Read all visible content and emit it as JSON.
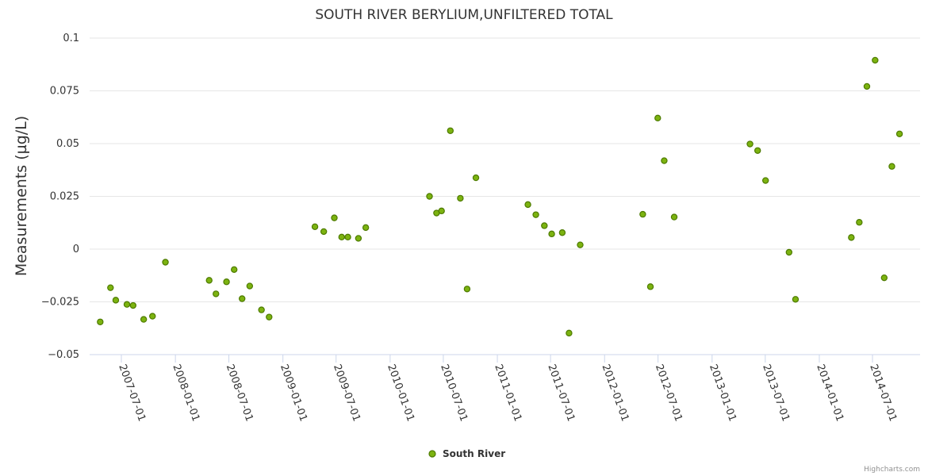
{
  "chart_data": {
    "type": "scatter",
    "title": "SOUTH RIVER BERYLIUM,UNFILTERED TOTAL",
    "xlabel": "",
    "ylabel": "Measurements (µg/L)",
    "ylim": [
      -0.05,
      0.1
    ],
    "yticks": [
      {
        "value": 0.1,
        "label": "0.1"
      },
      {
        "value": 0.075,
        "label": "0.075"
      },
      {
        "value": 0.05,
        "label": "0.05"
      },
      {
        "value": 0.025,
        "label": "0.025"
      },
      {
        "value": 0,
        "label": "0"
      },
      {
        "value": -0.025,
        "label": "−0.025"
      },
      {
        "value": -0.05,
        "label": "−0.05"
      }
    ],
    "xlim": [
      "2007-03-15",
      "2014-12-10"
    ],
    "xticks": [
      "2007-07-01",
      "2008-01-01",
      "2008-07-01",
      "2009-01-01",
      "2009-07-01",
      "2010-01-01",
      "2010-07-01",
      "2011-01-01",
      "2011-07-01",
      "2012-01-01",
      "2012-07-01",
      "2013-01-01",
      "2013-07-01",
      "2014-01-01",
      "2014-07-01"
    ],
    "grid": true,
    "legend_position": "bottom-center",
    "series": [
      {
        "name": "South River",
        "color": "#7cb310",
        "stroke": "#4d7a00",
        "points": [
          {
            "x": "2007-04-20",
            "y": -0.0345
          },
          {
            "x": "2007-05-25",
            "y": -0.0183
          },
          {
            "x": "2007-06-12",
            "y": -0.0242
          },
          {
            "x": "2007-07-20",
            "y": -0.0262
          },
          {
            "x": "2007-08-10",
            "y": -0.0267
          },
          {
            "x": "2007-09-15",
            "y": -0.0333
          },
          {
            "x": "2007-10-15",
            "y": -0.0318
          },
          {
            "x": "2007-11-28",
            "y": -0.0062
          },
          {
            "x": "2008-04-25",
            "y": -0.0148
          },
          {
            "x": "2008-05-18",
            "y": -0.0212
          },
          {
            "x": "2008-06-23",
            "y": -0.0155
          },
          {
            "x": "2008-07-19",
            "y": -0.0097
          },
          {
            "x": "2008-08-15",
            "y": -0.0235
          },
          {
            "x": "2008-09-10",
            "y": -0.0175
          },
          {
            "x": "2008-10-20",
            "y": -0.0288
          },
          {
            "x": "2008-11-15",
            "y": -0.0322
          },
          {
            "x": "2009-04-20",
            "y": 0.0106
          },
          {
            "x": "2009-05-20",
            "y": 0.0083
          },
          {
            "x": "2009-06-25",
            "y": 0.0148
          },
          {
            "x": "2009-07-20",
            "y": 0.0057
          },
          {
            "x": "2009-08-10",
            "y": 0.0057
          },
          {
            "x": "2009-09-15",
            "y": 0.0051
          },
          {
            "x": "2009-10-10",
            "y": 0.0102
          },
          {
            "x": "2010-05-15",
            "y": 0.025
          },
          {
            "x": "2010-06-08",
            "y": 0.0171
          },
          {
            "x": "2010-06-25",
            "y": 0.0181
          },
          {
            "x": "2010-07-25",
            "y": 0.0561
          },
          {
            "x": "2010-08-28",
            "y": 0.0241
          },
          {
            "x": "2010-09-20",
            "y": -0.0189
          },
          {
            "x": "2010-10-20",
            "y": 0.0338
          },
          {
            "x": "2011-04-15",
            "y": 0.0211
          },
          {
            "x": "2011-05-12",
            "y": 0.0163
          },
          {
            "x": "2011-06-10",
            "y": 0.0111
          },
          {
            "x": "2011-07-05",
            "y": 0.0072
          },
          {
            "x": "2011-08-10",
            "y": 0.0078
          },
          {
            "x": "2011-09-02",
            "y": -0.0398
          },
          {
            "x": "2011-10-10",
            "y": 0.002
          },
          {
            "x": "2012-05-10",
            "y": 0.0165
          },
          {
            "x": "2012-06-05",
            "y": -0.0178
          },
          {
            "x": "2012-06-30",
            "y": 0.0621
          },
          {
            "x": "2012-07-22",
            "y": 0.0419
          },
          {
            "x": "2012-08-25",
            "y": 0.0152
          },
          {
            "x": "2013-05-10",
            "y": 0.0498
          },
          {
            "x": "2013-06-05",
            "y": 0.0467
          },
          {
            "x": "2013-07-02",
            "y": 0.0325
          },
          {
            "x": "2013-09-20",
            "y": -0.0015
          },
          {
            "x": "2013-10-12",
            "y": -0.0238
          },
          {
            "x": "2014-04-20",
            "y": 0.0055
          },
          {
            "x": "2014-05-17",
            "y": 0.0127
          },
          {
            "x": "2014-06-12",
            "y": 0.0771
          },
          {
            "x": "2014-07-10",
            "y": 0.0895
          },
          {
            "x": "2014-08-10",
            "y": -0.0136
          },
          {
            "x": "2014-09-05",
            "y": 0.0392
          },
          {
            "x": "2014-10-01",
            "y": 0.0546
          }
        ]
      }
    ],
    "credits": "Highcharts.com"
  }
}
